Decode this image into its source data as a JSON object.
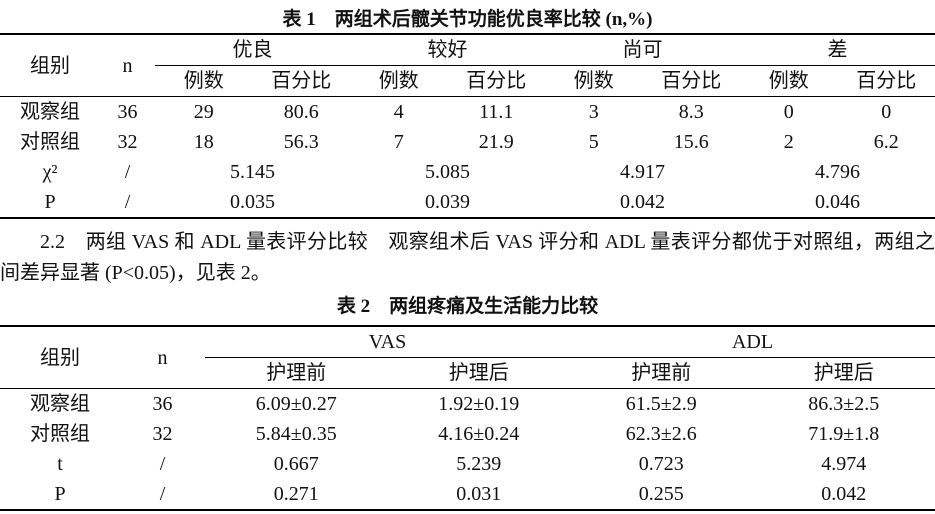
{
  "table1": {
    "title": "表 1　两组术后髋关节功能优良率比较 (n,%)",
    "header": {
      "group_label": "组别",
      "n_label": "n",
      "groups": [
        "优良",
        "较好",
        "尚可",
        "差"
      ],
      "subheaders": [
        "例数",
        "百分比",
        "例数",
        "百分比",
        "例数",
        "百分比",
        "例数",
        "百分比"
      ]
    },
    "rows": [
      [
        "观察组",
        "36",
        "29",
        "80.6",
        "4",
        "11.1",
        "3",
        "8.3",
        "0",
        "0"
      ],
      [
        "对照组",
        "32",
        "18",
        "56.3",
        "7",
        "21.9",
        "5",
        "15.6",
        "2",
        "6.2"
      ]
    ],
    "stat_rows": [
      [
        "χ²",
        "/",
        "5.145",
        "5.085",
        "4.917",
        "4.796"
      ],
      [
        "P",
        "/",
        "0.035",
        "0.039",
        "0.042",
        "0.046"
      ]
    ]
  },
  "paragraph": "2.2　两组 VAS 和 ADL 量表评分比较　观察组术后 VAS 评分和 ADL 量表评分都优于对照组，两组之间差异显著 (P<0.05)，见表 2。",
  "table2": {
    "title": "表 2　两组疼痛及生活能力比较",
    "header": {
      "group_label": "组别",
      "n_label": "n",
      "groups": [
        "VAS",
        "ADL"
      ],
      "subheaders": [
        "护理前",
        "护理后",
        "护理前",
        "护理后"
      ]
    },
    "rows": [
      [
        "观察组",
        "36",
        "6.09±0.27",
        "1.92±0.19",
        "61.5±2.9",
        "86.3±2.5"
      ],
      [
        "对照组",
        "32",
        "5.84±0.35",
        "4.16±0.24",
        "62.3±2.6",
        "71.9±1.8"
      ],
      [
        "t",
        "/",
        "0.667",
        "5.239",
        "0.723",
        "4.974"
      ],
      [
        "P",
        "/",
        "0.271",
        "0.031",
        "0.255",
        "0.042"
      ]
    ]
  }
}
